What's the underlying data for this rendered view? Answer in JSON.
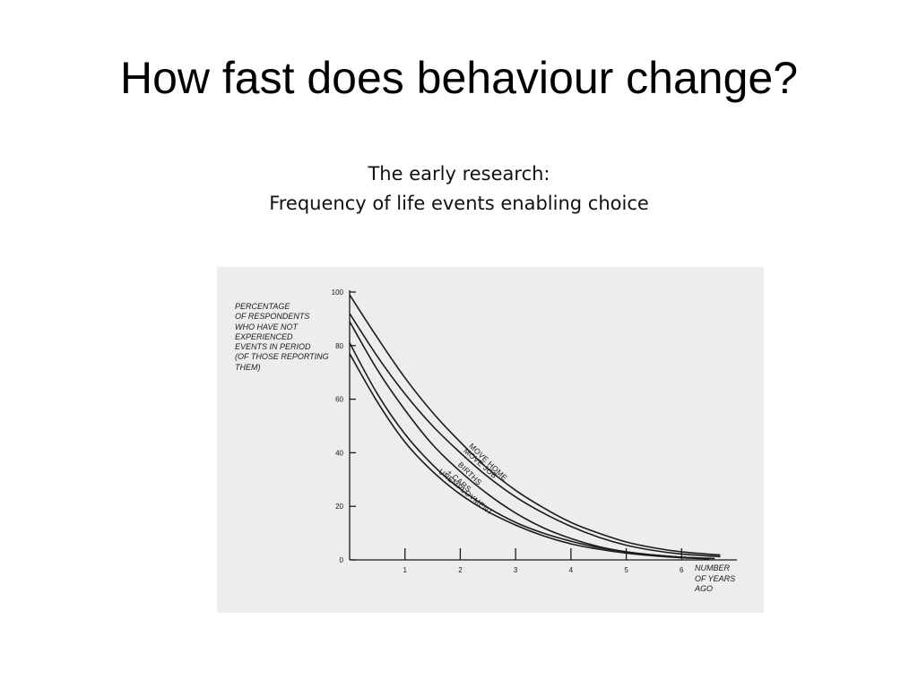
{
  "slide": {
    "title": "How fast does behaviour change?",
    "subtitle_lines": [
      "The early research:",
      "Frequency of life events enabling choice"
    ]
  },
  "chart_data": {
    "type": "line",
    "ylabel_lines": [
      "PERCENTAGE",
      "OF RESPONDENTS",
      "WHO HAVE NOT",
      "EXPERIENCED",
      "EVENTS IN PERIOD",
      "(OF THOSE REPORTING",
      "THEM)"
    ],
    "xlabel_lines": [
      "NUMBER",
      "OF YEARS",
      "AGO"
    ],
    "xlim": [
      0,
      7
    ],
    "ylim": [
      0,
      100
    ],
    "xticks": [
      1,
      2,
      3,
      4,
      5,
      6
    ],
    "yticks": [
      0,
      20,
      40,
      60,
      80,
      100
    ],
    "grid": false,
    "legend": "labels on curves",
    "line_color": "#1a1a1a",
    "series": [
      {
        "name": "MOVE HOME",
        "x": [
          0,
          0.5,
          1,
          1.5,
          2,
          2.5,
          3,
          3.5,
          4,
          4.5,
          5,
          5.5,
          6,
          6.7
        ],
        "y": [
          99,
          83,
          68,
          55,
          44,
          34,
          26,
          19.5,
          14,
          10,
          6.7,
          4.5,
          3,
          1.8
        ]
      },
      {
        "name": "MOVE JOB",
        "x": [
          0,
          0.5,
          1,
          1.5,
          2,
          2.5,
          3,
          3.5,
          4,
          4.5,
          5,
          5.5,
          6,
          6.7
        ],
        "y": [
          92,
          76,
          62,
          50,
          40,
          31,
          23.5,
          17.5,
          12.5,
          8.5,
          5.5,
          3.5,
          2.2,
          1.2
        ]
      },
      {
        "name": "BIRTHS",
        "x": [
          0,
          0.5,
          1,
          1.5,
          2,
          2.5,
          3,
          3.5,
          4,
          4.5,
          5,
          5.5,
          6,
          6.6
        ],
        "y": [
          89,
          71,
          56,
          43,
          33,
          24.5,
          17.5,
          12,
          8,
          5,
          3,
          1.8,
          1,
          0.5
        ]
      },
      {
        "name": "± CARS",
        "x": [
          0,
          0.5,
          1,
          1.5,
          2,
          2.5,
          3,
          3.5,
          4,
          4.5,
          5,
          5.5,
          6,
          6.5
        ],
        "y": [
          81,
          62,
          47,
          35.5,
          26.5,
          19.5,
          14,
          10,
          7,
          4.6,
          3,
          1.8,
          1,
          0.5
        ]
      },
      {
        "name": "UNEMPLOYMENT",
        "x": [
          0,
          0.5,
          1,
          1.5,
          2,
          2.5,
          3,
          3.5,
          4,
          4.5,
          5,
          5.5,
          6,
          6.5
        ],
        "y": [
          77,
          59,
          44,
          33,
          24.5,
          18,
          13,
          9,
          6,
          4,
          2.5,
          1.5,
          0.8,
          0.4
        ]
      }
    ]
  }
}
